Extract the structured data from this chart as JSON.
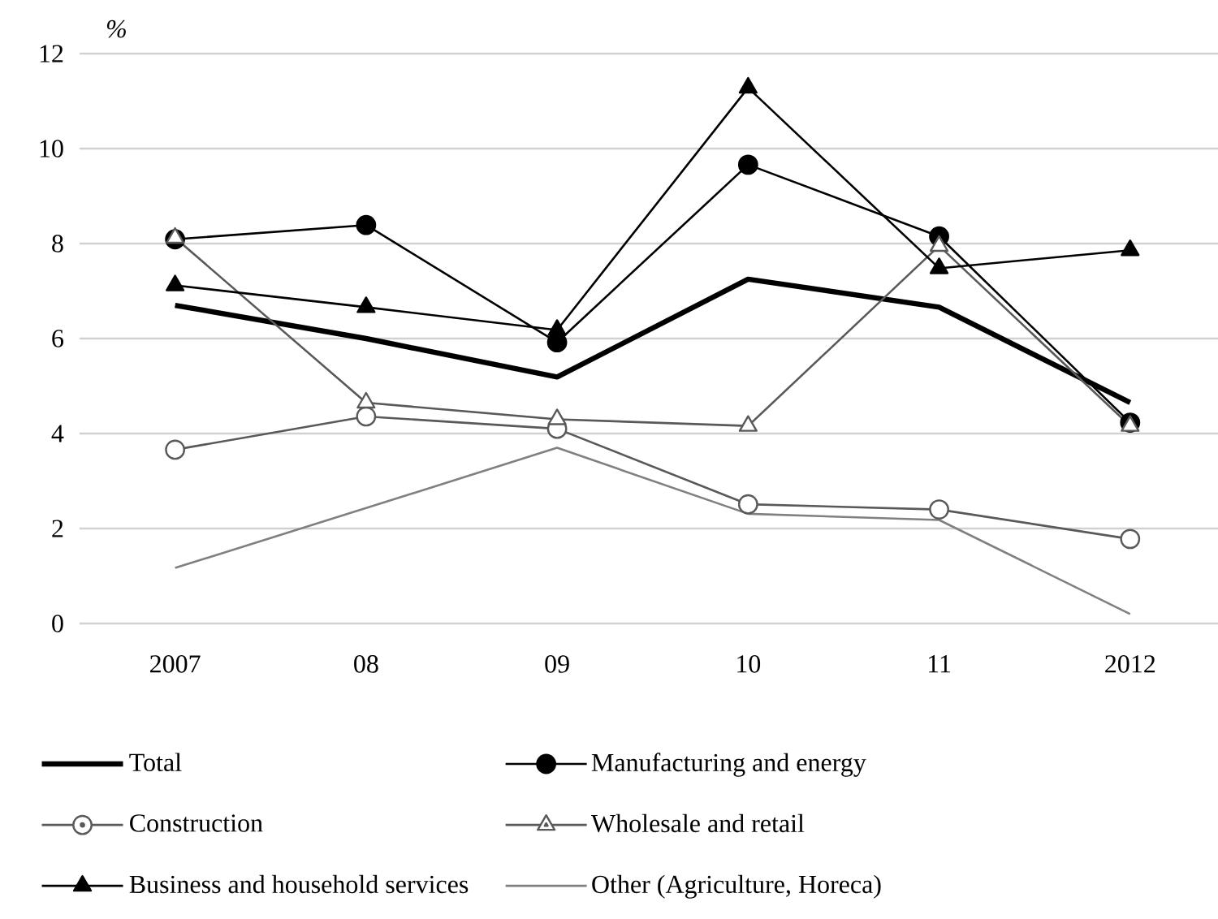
{
  "chart_data": {
    "type": "line",
    "ylabel": "%",
    "categories": [
      "2007",
      "08",
      "09",
      "10",
      "11",
      "2012"
    ],
    "ylim": [
      0,
      12
    ],
    "yticks": [
      0,
      2,
      4,
      6,
      8,
      10,
      12
    ],
    "grid": "y",
    "legend": "bottom",
    "series": [
      {
        "name": "Total",
        "color": "#000000",
        "marker": "none",
        "values": [
          6.7,
          6.0,
          5.19,
          7.25,
          6.66,
          4.65
        ]
      },
      {
        "name": "Manufacturing and energy",
        "color": "#000000",
        "marker": "circle",
        "values": [
          8.09,
          8.39,
          5.92,
          9.66,
          8.15,
          4.23
        ]
      },
      {
        "name": "Construction",
        "color": "#595959",
        "marker": "circle",
        "values": [
          3.66,
          4.36,
          4.1,
          2.51,
          2.4,
          1.78
        ]
      },
      {
        "name": "Wholesale and retail",
        "color": "#595959",
        "marker": "triangle",
        "values": [
          8.12,
          4.65,
          4.3,
          4.16,
          7.95,
          4.16
        ]
      },
      {
        "name": "Business and household services",
        "color": "#000000",
        "marker": "triangle",
        "values": [
          7.12,
          6.66,
          6.18,
          11.28,
          7.48,
          7.86
        ]
      },
      {
        "name": "Other (Agriculture, Horeca)",
        "color": "#808080",
        "marker": "none",
        "values": [
          1.17,
          2.43,
          3.7,
          2.31,
          2.18,
          0.2
        ]
      }
    ]
  }
}
